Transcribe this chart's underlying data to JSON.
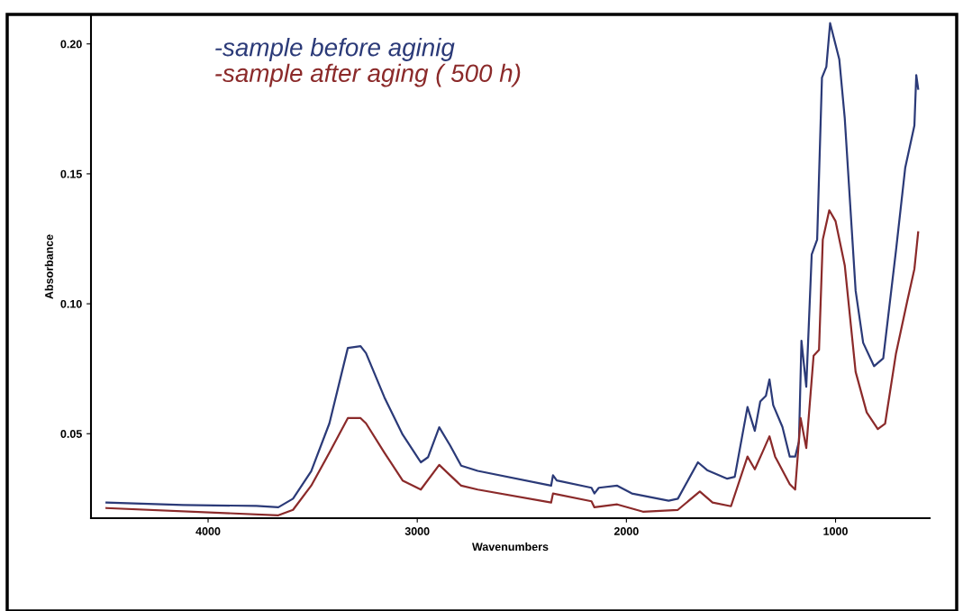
{
  "chart_data": {
    "type": "line",
    "xlabel": "Wavenumbers",
    "ylabel": "Absorbance",
    "xlim": [
      4560,
      550
    ],
    "xticks": [
      4000,
      3000,
      2000,
      1000
    ],
    "ylim": [
      0.0175,
      0.211
    ],
    "yticks": [
      {
        "value": 0.05,
        "label": "0.05"
      },
      {
        "value": 0.1,
        "label": "0.10"
      },
      {
        "value": 0.15,
        "label": "0.15"
      },
      {
        "value": 0.2,
        "label": "0.20"
      }
    ],
    "grid": false,
    "legend": "top left",
    "line_style": "solid",
    "marker": "none",
    "series": [
      {
        "name": "-sample before aginig",
        "color": "#2b3a78",
        "x": [
          4486,
          4119,
          3769,
          3664,
          3594,
          3507,
          3420,
          3332,
          3271,
          3245,
          3157,
          3070,
          2983,
          2948,
          2895,
          2843,
          2790,
          2711,
          2360,
          2351,
          2333,
          2167,
          2153,
          2132,
          2044,
          1974,
          1798,
          1754,
          1658,
          1614,
          1518,
          1482,
          1421,
          1386,
          1360,
          1333,
          1316,
          1298,
          1254,
          1219,
          1193,
          1175,
          1163,
          1140,
          1114,
          1088,
          1065,
          1044,
          1026,
          1000,
          982,
          956,
          904,
          868,
          816,
          772,
          711,
          667,
          623,
          614,
          605
        ],
        "values": [
          0.0235,
          0.0226,
          0.0222,
          0.0217,
          0.025,
          0.0356,
          0.054,
          0.083,
          0.0837,
          0.081,
          0.064,
          0.0497,
          0.039,
          0.041,
          0.0525,
          0.0455,
          0.0377,
          0.0357,
          0.03,
          0.034,
          0.032,
          0.0292,
          0.027,
          0.0292,
          0.03,
          0.027,
          0.0242,
          0.025,
          0.039,
          0.036,
          0.0327,
          0.0334,
          0.0603,
          0.0511,
          0.0624,
          0.0646,
          0.0709,
          0.061,
          0.0526,
          0.0412,
          0.0412,
          0.047,
          0.0858,
          0.0681,
          0.119,
          0.1247,
          0.187,
          0.1912,
          0.208,
          0.1997,
          0.194,
          0.1714,
          0.105,
          0.085,
          0.076,
          0.079,
          0.1205,
          0.1523,
          0.1686,
          0.188,
          0.1827
        ]
      },
      {
        "name": "-sample after aging ( 500 h)",
        "color": "#8b2a2a",
        "x": [
          4486,
          3664,
          3594,
          3507,
          3420,
          3332,
          3271,
          3245,
          3157,
          3070,
          2983,
          2895,
          2843,
          2790,
          2711,
          2360,
          2351,
          2167,
          2153,
          2044,
          1921,
          1754,
          1649,
          1588,
          1500,
          1421,
          1386,
          1351,
          1316,
          1289,
          1219,
          1193,
          1167,
          1140,
          1105,
          1079,
          1061,
          1030,
          1000,
          956,
          904,
          851,
          798,
          763,
          711,
          658,
          623,
          605
        ],
        "values": [
          0.0214,
          0.0186,
          0.0207,
          0.03,
          0.0427,
          0.056,
          0.056,
          0.054,
          0.0427,
          0.032,
          0.0285,
          0.038,
          0.034,
          0.03,
          0.0285,
          0.0235,
          0.027,
          0.024,
          0.0217,
          0.0228,
          0.02,
          0.0207,
          0.0278,
          0.0235,
          0.0221,
          0.0412,
          0.0363,
          0.0426,
          0.049,
          0.0412,
          0.0306,
          0.0285,
          0.056,
          0.0445,
          0.08,
          0.0823,
          0.1247,
          0.136,
          0.1318,
          0.1148,
          0.0738,
          0.0582,
          0.0518,
          0.0539,
          0.0809,
          0.1007,
          0.1134,
          0.1275
        ]
      }
    ]
  }
}
